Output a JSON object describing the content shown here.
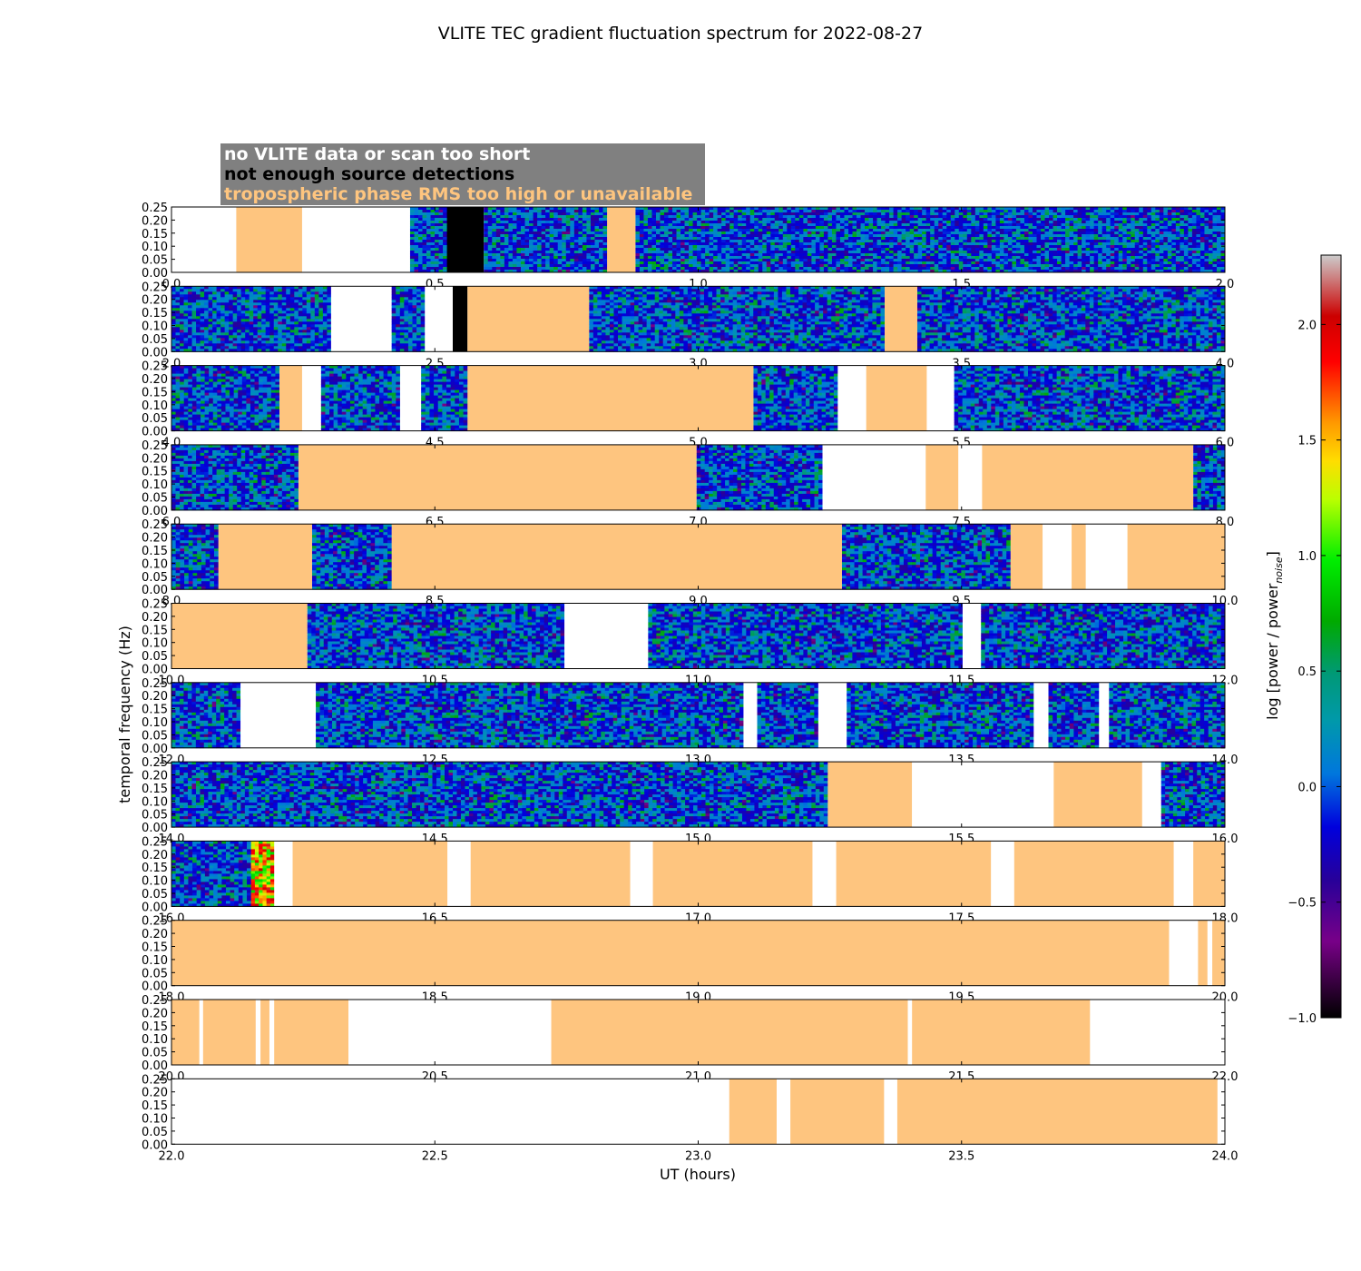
{
  "chart_data": {
    "type": "heatmap",
    "title": "VLITE TEC gradient fluctuation spectrum for 2022-08-27",
    "xlabel": "UT (hours)",
    "ylabel": "temporal frequency (Hz)",
    "colorbar_label": "log [power / power",
    "colorbar_label_sub": "noise",
    "colorbar_label_end": "]",
    "colorbar": {
      "range": [
        -1.0,
        2.3
      ],
      "ticks": [
        "−1.0",
        "−0.5",
        "0.0",
        "0.5",
        "1.0",
        "1.5",
        "2.0"
      ],
      "tick_values": [
        -1.0,
        -0.5,
        0.0,
        0.5,
        1.0,
        1.5,
        2.0
      ],
      "colormap": "spectral"
    },
    "ylim": [
      0,
      0.25
    ],
    "yticks": [
      "0.00",
      "0.05",
      "0.10",
      "0.15",
      "0.20",
      "0.25"
    ],
    "ytick_values": [
      0.0,
      0.05,
      0.1,
      0.15,
      0.2,
      0.25
    ],
    "legend": {
      "placement": "top-left",
      "box_color": "#808080",
      "entries": [
        {
          "label": "no VLITE data or scan too short",
          "color": "#ffffff"
        },
        {
          "label": "not enough source detections",
          "color": "#000000"
        },
        {
          "label": "tropospheric phase RMS too high or unavailable",
          "color": "#fec57f"
        }
      ]
    },
    "flag_colors": {
      "nodata": "#ffffff",
      "nodet": "#000000",
      "trop": "#fec57f"
    },
    "panels": [
      {
        "xlim": [
          0,
          2
        ],
        "xticks": [
          "0.0",
          "0.5",
          "1.0",
          "1.5",
          "2.0"
        ],
        "segments": [
          [
            0.0,
            0.123,
            "nodata"
          ],
          [
            0.123,
            0.248,
            "trop"
          ],
          [
            0.248,
            0.453,
            "nodata"
          ],
          [
            0.453,
            0.523,
            "data"
          ],
          [
            0.523,
            0.593,
            "nodet"
          ],
          [
            0.593,
            0.827,
            "data"
          ],
          [
            0.827,
            0.881,
            "trop"
          ],
          [
            0.881,
            2.0,
            "data"
          ]
        ]
      },
      {
        "xlim": [
          2,
          4
        ],
        "xticks": [
          "2.0",
          "2.5",
          "3.0",
          "3.5",
          "4.0"
        ],
        "segments": [
          [
            2.0,
            2.303,
            "data"
          ],
          [
            2.303,
            2.418,
            "nodata"
          ],
          [
            2.418,
            2.481,
            "data"
          ],
          [
            2.481,
            2.534,
            "nodata"
          ],
          [
            2.534,
            2.562,
            "nodet"
          ],
          [
            2.562,
            2.793,
            "trop"
          ],
          [
            2.793,
            3.354,
            "data"
          ],
          [
            3.354,
            3.416,
            "trop"
          ],
          [
            3.416,
            4.0,
            "data"
          ]
        ]
      },
      {
        "xlim": [
          4,
          6
        ],
        "xticks": [
          "4.0",
          "4.5",
          "5.0",
          "5.5",
          "6.0"
        ],
        "segments": [
          [
            4.0,
            4.205,
            "data"
          ],
          [
            4.205,
            4.248,
            "trop"
          ],
          [
            4.248,
            4.284,
            "nodata"
          ],
          [
            4.284,
            4.434,
            "data"
          ],
          [
            4.434,
            4.474,
            "nodata"
          ],
          [
            4.474,
            4.562,
            "data"
          ],
          [
            4.562,
            5.105,
            "trop"
          ],
          [
            5.105,
            5.265,
            "data"
          ],
          [
            5.265,
            5.319,
            "nodata"
          ],
          [
            5.319,
            5.434,
            "trop"
          ],
          [
            5.434,
            5.486,
            "nodata"
          ],
          [
            5.486,
            6.0,
            "data"
          ]
        ]
      },
      {
        "xlim": [
          6,
          8
        ],
        "xticks": [
          "6.0",
          "6.5",
          "7.0",
          "7.5",
          "8.0"
        ],
        "segments": [
          [
            6.0,
            6.241,
            "data"
          ],
          [
            6.241,
            6.997,
            "trop"
          ],
          [
            6.997,
            7.236,
            "data"
          ],
          [
            7.236,
            7.432,
            "nodata"
          ],
          [
            7.432,
            7.494,
            "trop"
          ],
          [
            7.494,
            7.539,
            "nodata"
          ],
          [
            7.539,
            7.94,
            "trop"
          ],
          [
            7.94,
            8.0,
            "data"
          ]
        ]
      },
      {
        "xlim": [
          8,
          10
        ],
        "xticks": [
          "8.0",
          "8.5",
          "9.0",
          "9.5",
          "10.0"
        ],
        "segments": [
          [
            8.0,
            8.089,
            "data"
          ],
          [
            8.089,
            8.267,
            "trop"
          ],
          [
            8.267,
            8.418,
            "data"
          ],
          [
            8.418,
            9.273,
            "trop"
          ],
          [
            9.273,
            9.593,
            "data"
          ],
          [
            9.593,
            9.654,
            "trop"
          ],
          [
            9.654,
            9.709,
            "nodata"
          ],
          [
            9.709,
            9.736,
            "trop"
          ],
          [
            9.736,
            9.815,
            "nodata"
          ],
          [
            9.815,
            10.0,
            "trop"
          ]
        ]
      },
      {
        "xlim": [
          10,
          12
        ],
        "xticks": [
          "10.0",
          "10.5",
          "11.0",
          "11.5",
          "12.0"
        ],
        "segments": [
          [
            10.0,
            10.258,
            "trop"
          ],
          [
            10.258,
            10.746,
            "data"
          ],
          [
            10.746,
            10.905,
            "nodata"
          ],
          [
            10.905,
            11.502,
            "data"
          ],
          [
            11.502,
            11.537,
            "nodata"
          ],
          [
            11.537,
            12.0,
            "data"
          ]
        ]
      },
      {
        "xlim": [
          12,
          14
        ],
        "xticks": [
          "12.0",
          "12.5",
          "13.0",
          "13.5",
          "14.0"
        ],
        "segments": [
          [
            12.0,
            12.131,
            "data"
          ],
          [
            12.131,
            12.274,
            "nodata"
          ],
          [
            12.274,
            13.086,
            "data"
          ],
          [
            13.086,
            13.112,
            "nodata"
          ],
          [
            13.112,
            13.228,
            "data"
          ],
          [
            13.228,
            13.282,
            "nodata"
          ],
          [
            13.282,
            13.637,
            "data"
          ],
          [
            13.637,
            13.665,
            "nodata"
          ],
          [
            13.665,
            13.761,
            "data"
          ],
          [
            13.761,
            13.78,
            "nodata"
          ],
          [
            13.78,
            14.0,
            "data"
          ]
        ]
      },
      {
        "xlim": [
          14,
          16
        ],
        "xticks": [
          "14.0",
          "14.5",
          "15.0",
          "15.5",
          "16.0"
        ],
        "segments": [
          [
            14.0,
            15.246,
            "data"
          ],
          [
            15.246,
            15.406,
            "trop"
          ],
          [
            15.406,
            15.675,
            "nodata"
          ],
          [
            15.675,
            15.843,
            "trop"
          ],
          [
            15.843,
            15.879,
            "nodata"
          ],
          [
            15.879,
            16.0,
            "data"
          ]
        ]
      },
      {
        "xlim": [
          16,
          18
        ],
        "xticks": [
          "16.0",
          "16.5",
          "17.0",
          "17.5",
          "18.0"
        ],
        "segments": [
          [
            16.0,
            16.151,
            "data"
          ],
          [
            16.151,
            16.195,
            "hot"
          ],
          [
            16.195,
            16.23,
            "nodata"
          ],
          [
            16.23,
            16.524,
            "trop"
          ],
          [
            16.524,
            16.568,
            "nodata"
          ],
          [
            16.568,
            16.871,
            "trop"
          ],
          [
            16.871,
            16.914,
            "nodata"
          ],
          [
            16.914,
            17.217,
            "trop"
          ],
          [
            17.217,
            17.262,
            "nodata"
          ],
          [
            17.262,
            17.556,
            "trop"
          ],
          [
            17.556,
            17.6,
            "nodata"
          ],
          [
            17.6,
            17.903,
            "trop"
          ],
          [
            17.903,
            17.94,
            "nodata"
          ],
          [
            17.94,
            18.0,
            "trop"
          ]
        ]
      },
      {
        "xlim": [
          18,
          20
        ],
        "xticks": [
          "18.0",
          "18.5",
          "19.0",
          "19.5",
          "20.0"
        ],
        "segments": [
          [
            18.0,
            19.894,
            "trop"
          ],
          [
            19.894,
            19.949,
            "nodata"
          ],
          [
            19.949,
            19.967,
            "trop"
          ],
          [
            19.967,
            19.976,
            "nodata"
          ],
          [
            19.976,
            20.0,
            "trop"
          ]
        ]
      },
      {
        "xlim": [
          20,
          22
        ],
        "xticks": [
          "20.0",
          "20.5",
          "21.0",
          "21.5",
          "22.0"
        ],
        "segments": [
          [
            20.0,
            20.053,
            "trop"
          ],
          [
            20.053,
            20.06,
            "nodata"
          ],
          [
            20.06,
            20.16,
            "trop"
          ],
          [
            20.16,
            20.169,
            "nodata"
          ],
          [
            20.169,
            20.186,
            "trop"
          ],
          [
            20.186,
            20.195,
            "nodata"
          ],
          [
            20.195,
            20.336,
            "trop"
          ],
          [
            20.336,
            20.721,
            "nodata"
          ],
          [
            20.721,
            21.398,
            "trop"
          ],
          [
            21.398,
            21.406,
            "nodata"
          ],
          [
            21.406,
            21.744,
            "trop"
          ],
          [
            21.744,
            22.0,
            "nodata"
          ]
        ]
      },
      {
        "xlim": [
          22,
          24
        ],
        "xticks": [
          "22.0",
          "22.5",
          "23.0",
          "23.5",
          "24.0"
        ],
        "segments": [
          [
            22.0,
            23.059,
            "nodata"
          ],
          [
            23.059,
            23.149,
            "trop"
          ],
          [
            23.149,
            23.175,
            "nodata"
          ],
          [
            23.175,
            23.353,
            "trop"
          ],
          [
            23.353,
            23.378,
            "nodata"
          ],
          [
            23.378,
            23.986,
            "trop"
          ],
          [
            23.986,
            24.0,
            "nodata"
          ]
        ]
      }
    ]
  }
}
